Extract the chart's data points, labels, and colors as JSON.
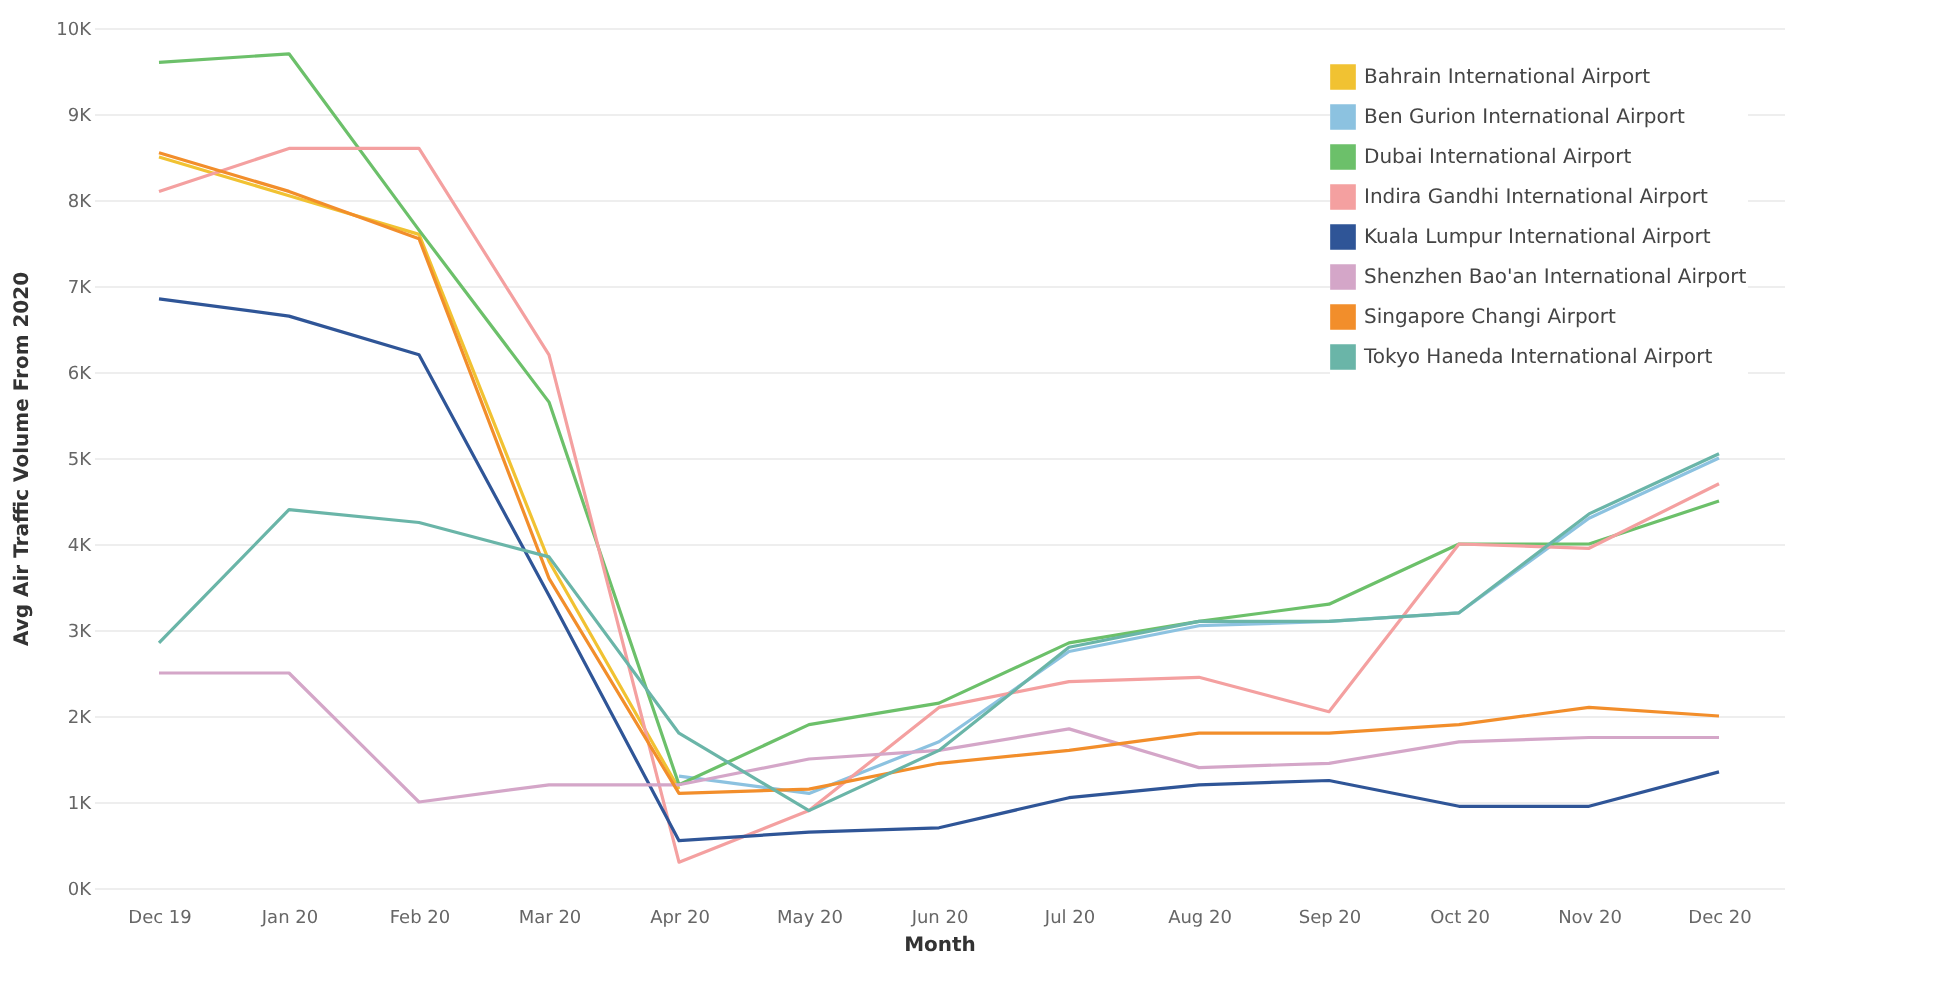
{
  "chart_data": {
    "type": "line",
    "xlabel": "Month",
    "ylabel": "Avg Air Traffic Volume From  2020",
    "categories": [
      "Dec 19",
      "Jan 20",
      "Feb 20",
      "Mar 20",
      "Apr 20",
      "May 20",
      "Jun 20",
      "Jul 20",
      "Aug 20",
      "Sep 20",
      "Oct 20",
      "Nov 20",
      "Dec 20"
    ],
    "ylim": [
      0,
      10000
    ],
    "yticks": [
      {
        "value": 0,
        "label": "0K"
      },
      {
        "value": 1000,
        "label": "1K"
      },
      {
        "value": 2000,
        "label": "2K"
      },
      {
        "value": 3000,
        "label": "3K"
      },
      {
        "value": 4000,
        "label": "4K"
      },
      {
        "value": 5000,
        "label": "5K"
      },
      {
        "value": 6000,
        "label": "6K"
      },
      {
        "value": 7000,
        "label": "7K"
      },
      {
        "value": 8000,
        "label": "8K"
      },
      {
        "value": 9000,
        "label": "9K"
      },
      {
        "value": 10000,
        "label": "10K"
      }
    ],
    "grid": "y",
    "legend": "top right",
    "series": [
      {
        "name": "Bahrain International Airport",
        "color": "#f1c232",
        "values": [
          8500,
          8050,
          7600,
          3800,
          1150,
          null,
          null,
          null,
          null,
          null,
          null,
          null,
          null
        ]
      },
      {
        "name": "Ben Gurion International Airport",
        "color": "#8cc2e0",
        "values": [
          null,
          null,
          null,
          null,
          1300,
          1100,
          1700,
          2750,
          3050,
          3100,
          3200,
          4300,
          5000
        ]
      },
      {
        "name": "Dubai International Airport",
        "color": "#6cc06a",
        "values": [
          9600,
          9700,
          7650,
          5650,
          1200,
          1900,
          2150,
          2850,
          3100,
          3300,
          4000,
          4000,
          4500
        ]
      },
      {
        "name": "Indira Gandhi International Airport",
        "color": "#f4a0a0",
        "values": [
          8100,
          8600,
          8600,
          6200,
          300,
          900,
          2100,
          2400,
          2450,
          2050,
          4000,
          3950,
          4700
        ]
      },
      {
        "name": "Kuala Lumpur International Airport",
        "color": "#2f5597",
        "values": [
          6850,
          6650,
          6200,
          3400,
          550,
          650,
          700,
          1050,
          1200,
          1250,
          950,
          950,
          1350
        ]
      },
      {
        "name": "Shenzhen Bao'an International Airport",
        "color": "#d4a6c8",
        "values": [
          2500,
          2500,
          1000,
          1200,
          1200,
          1500,
          1600,
          1850,
          1400,
          1450,
          1700,
          1750,
          1750
        ]
      },
      {
        "name": "Singapore Changi Airport",
        "color": "#f28e2b",
        "values": [
          8550,
          8100,
          7550,
          3600,
          1100,
          1150,
          1450,
          1600,
          1800,
          1800,
          1900,
          2100,
          2000
        ]
      },
      {
        "name": "Tokyo Haneda International Airport",
        "color": "#6ab5a8",
        "values": [
          2850,
          4400,
          4250,
          3850,
          1800,
          900,
          1600,
          2800,
          3100,
          3100,
          3200,
          4350,
          5050
        ]
      }
    ]
  }
}
